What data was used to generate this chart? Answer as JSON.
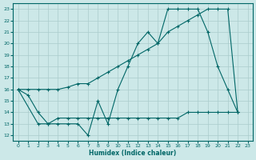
{
  "xlabel": "Humidex (Indice chaleur)",
  "xlim": [
    -0.5,
    23.5
  ],
  "ylim": [
    11.5,
    23.5
  ],
  "yticks": [
    12,
    13,
    14,
    15,
    16,
    17,
    18,
    19,
    20,
    21,
    22,
    23
  ],
  "xticks": [
    0,
    1,
    2,
    3,
    4,
    5,
    6,
    7,
    8,
    9,
    10,
    11,
    12,
    13,
    14,
    15,
    16,
    17,
    18,
    19,
    20,
    21,
    22,
    23
  ],
  "bg_color": "#cce8e8",
  "line_color": "#006666",
  "grid_color": "#aacccc",
  "series": [
    {
      "x": [
        0,
        1,
        2,
        3,
        4,
        5,
        6,
        7,
        8,
        9,
        10,
        11,
        12,
        13,
        14,
        15,
        16,
        17,
        18,
        19,
        20,
        21,
        22
      ],
      "y": [
        16,
        15.5,
        14,
        13,
        13,
        13,
        13,
        12,
        15,
        13,
        16,
        18,
        20,
        21,
        20,
        23,
        23,
        23,
        23,
        21,
        18,
        16,
        14
      ]
    },
    {
      "x": [
        0,
        1,
        2,
        3,
        4,
        5,
        6,
        7,
        8,
        9,
        10,
        11,
        12,
        13,
        14,
        15,
        16,
        17,
        18,
        19,
        20,
        21,
        22
      ],
      "y": [
        16,
        16,
        16,
        16,
        16,
        16.2,
        16.5,
        16.5,
        17,
        17.5,
        18,
        18.5,
        19,
        19.5,
        20,
        21,
        21.5,
        22,
        22.5,
        23,
        23,
        23,
        14
      ]
    },
    {
      "x": [
        0,
        2,
        3,
        4,
        5,
        6,
        7,
        8,
        9,
        10,
        11,
        12,
        13,
        14,
        15,
        16,
        17,
        18,
        19,
        20,
        21,
        22
      ],
      "y": [
        16,
        13,
        13,
        13.5,
        13.5,
        13.5,
        13.5,
        13.5,
        13.5,
        13.5,
        13.5,
        13.5,
        13.5,
        13.5,
        13.5,
        13.5,
        14,
        14,
        14,
        14,
        14,
        14
      ]
    }
  ]
}
